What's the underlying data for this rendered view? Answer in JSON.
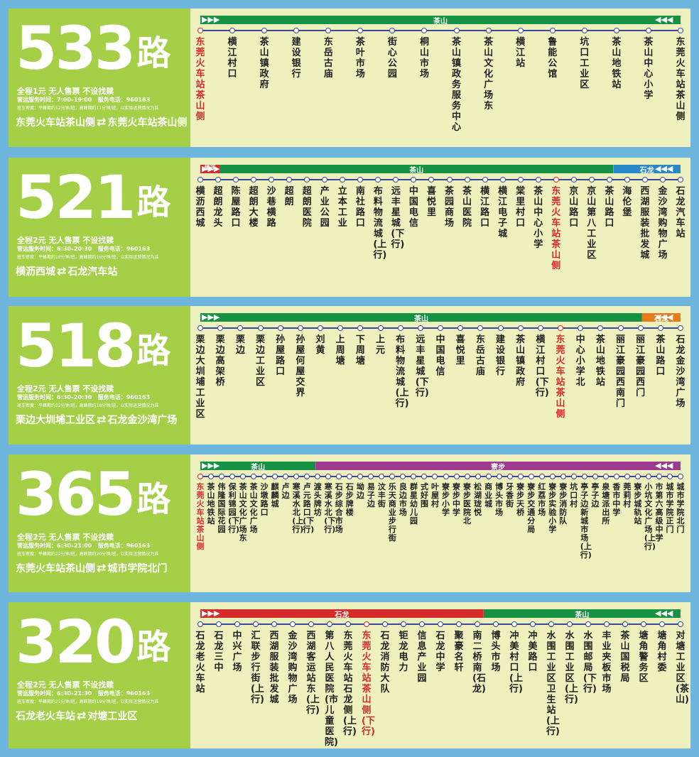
{
  "colors": {
    "background": "#6fb6de",
    "panel_left": "#a4cf47",
    "panel_right": "#eef1bd",
    "band_green": "#179244",
    "band_purple": "#9a3b8f",
    "band_red": "#d62b2b",
    "band_blue": "#2a87c8",
    "band_orange": "#e57b1d",
    "highlight": "#d62b2b"
  },
  "routes": [
    {
      "number": "533",
      "unit": "路",
      "fare": "全程1元  无人售票  不设找赎",
      "hours": "营运服务时间：7:00–19:00",
      "phone": "服务电话：960163",
      "interval": "班车密度：平峰期约12分钟/班，高峰期约11分钟/班，以实际运营情况为准",
      "from": "东莞火车站茶山侧",
      "to": "东莞火车站茶山侧",
      "bands": [
        {
          "label": "茶山",
          "color": "#179244",
          "from": 0,
          "to": 1
        }
      ],
      "stops": [
        "东莞火车站茶山侧",
        "横江村口",
        "茶山镇政府",
        "建设银行",
        "东岳古庙",
        "茶叶市场",
        "街心公园",
        "桐山市场",
        "茶山镇政务服务中心",
        "茶山文化广场东",
        "横江站",
        "鲁能公馆",
        "坑口工业区",
        "茶山地铁站",
        "茶山中心小学",
        "东莞火车站茶山侧"
      ],
      "highlight": [
        0
      ]
    },
    {
      "number": "521",
      "unit": "路",
      "fare": "全程2元  无人售票  不设找赎",
      "hours": "营运服务时间：6:30–20:30",
      "phone": "服务电话：960163",
      "interval": "班车密度：平峰期约18分钟/班，高峰期约16分钟/班，以实际运营情况为准",
      "from": "横沥西城",
      "to": "石龙汽车站",
      "bands": [
        {
          "label": "横沥",
          "color": "#d62b2b",
          "from": 0,
          "to": 0.04
        },
        {
          "label": "茶山",
          "color": "#179244",
          "from": 0.04,
          "to": 0.86
        },
        {
          "label": "石龙",
          "color": "#2a87c8",
          "from": 0.86,
          "to": 1
        }
      ],
      "stops": [
        "横沥西城",
        "超朗龙头",
        "陈屋路口",
        "超朗大楼",
        "沙巷横路",
        "超朗",
        "超朗医院",
        "产业公园",
        "立本工业",
        "南社路口",
        "布料物流城(上行)",
        "远丰星城(下行)",
        "中国电信",
        "喜悦里",
        "茶园商场",
        "茶山医院",
        "横江路口",
        "横江电子城",
        "棠里村口",
        "茶山中心小学",
        "东莞火车站茶山侧",
        "京山路口",
        "京山第八工业区",
        "茶山路口",
        "海伦堡",
        "西湖服装批发城",
        "金沙湾购物广场",
        "石龙汽车站"
      ],
      "highlight": [
        20
      ]
    },
    {
      "number": "518",
      "unit": "路",
      "fare": "全程2元  无人售票  不设找赎",
      "hours": "营运服务时间：6:30–20:30",
      "phone": "服务电话：960163",
      "interval": "班车密度：平峰期约22分钟/班，高峰期约18分钟/班，以实际运营情况为准",
      "from": "栗边大圳埔工业区",
      "to": "石龙金沙湾广场",
      "bands": [
        {
          "label": "茶山",
          "color": "#179244",
          "from": 0,
          "to": 0.92
        },
        {
          "label": "石龙",
          "color": "#e57b1d",
          "from": 0.92,
          "to": 1
        }
      ],
      "stops": [
        "栗边大圳埔工业区",
        "栗边高架桥",
        "栗边",
        "栗边工业区",
        "孙屋路口",
        "孙屋何屋交界",
        "刘黄",
        "上周塘",
        "下周塘",
        "上元",
        "布料物流城(上行)",
        "远丰星城(下行)",
        "中国电信",
        "喜悦里",
        "东岳古庙",
        "建设银行",
        "茶山镇政府",
        "横江村口(下行)",
        "东莞火车站茶山侧",
        "中心小学北",
        "茶山地铁站",
        "丽江豪园西南门",
        "丽江豪园西门",
        "茶山路口",
        "石龙金沙湾广场"
      ],
      "highlight": [
        18
      ]
    },
    {
      "number": "365",
      "unit": "路",
      "fare": "全程2元  无人售票  不设找赎",
      "hours": "营运服务时间：6:30–21:00",
      "phone": "服务电话：960163",
      "interval": "班车密度：平峰期约22分钟/班，高峰期约20分钟/班，以实际运营情况为准",
      "from": "东莞火车站茶山侧",
      "to": "城市学院北门",
      "bands": [
        {
          "label": "茶山",
          "color": "#179244",
          "from": 0,
          "to": 0.24
        },
        {
          "label": "寮步",
          "color": "#9a3b8f",
          "from": 0.24,
          "to": 1
        }
      ],
      "stops": [
        "东莞火车站茶山侧",
        "茶山地铁站",
        "伟隆国际花园",
        "保利锦园(下行)",
        "茶山文化广场东",
        "茶山文化广场",
        "沙墩路口",
        "麒麟城",
        "卢边",
        "寒溪水北(上行)",
        "卢元路口(下行)",
        "渡头牌坊",
        "寒溪水北(下行)",
        "石步综合市场",
        "石步牌楼",
        "坳边",
        "易子边",
        "汶丰街",
        "乐天商业步行街",
        "良边市场",
        "群星幼儿园",
        "式好围",
        "叶屋村",
        "寮步小学",
        "寮步中学",
        "寮步医院北",
        "松湖珑悦",
        "商业城",
        "博头市场",
        "牙香街",
        "寮步天桥",
        "寮步交通分局",
        "红荔市场",
        "寮步实验小学",
        "寮步消防队",
        "坑口村",
        "亭子边新城市场(上行)",
        "亭子边",
        "泉塘派出所",
        "香市中学",
        "莞莉村",
        "寮步城轨站",
        "小坑文化广场(上行)",
        "市第六高级中学",
        "城市学院正门",
        "城市学院北门"
      ],
      "highlight": [
        0
      ]
    },
    {
      "number": "320",
      "unit": "路",
      "fare": "全程2元  无人售票  不设找赎",
      "hours": "营运服务时间：6:30–21:30",
      "phone": "服务电话：960163",
      "interval": "班车密度：平峰期约21分钟/班，高峰期约19分钟/班，以实际运营情况为准",
      "from": "石龙老火车站",
      "to": "对塘工业区",
      "bands": [
        {
          "label": "石龙",
          "color": "#d62b2b",
          "from": 0,
          "to": 0.59
        },
        {
          "label": "茶山",
          "color": "#179244",
          "from": 0.59,
          "to": 1
        }
      ],
      "stops": [
        "石龙老火车站",
        "石龙三中",
        "中兴广场",
        "汇联步行街(上行)",
        "西湖服装批发城",
        "金沙湾购物广场",
        "西湖客运站东(上行)",
        "第八人民医院(市儿童医院)",
        "东莞火车站石龙侧(上行)",
        "东莞火车站茶山侧(下行)",
        "石龙消防大队",
        "钜龙电力",
        "信息产业园",
        "石龙中学",
        "聚豪名轩",
        "南二桥南(石龙)",
        "博头市场",
        "冲美村口(上行)",
        "冲美路口",
        "水围工业区卫生站(上行)",
        "水围工业区(上行)",
        "水围邮局(下行)",
        "丰业夹板市场",
        "茶山国税局",
        "塘角警务区",
        "塘角村委",
        "对塘工业区(茶山)"
      ],
      "highlight": [
        9
      ]
    }
  ]
}
